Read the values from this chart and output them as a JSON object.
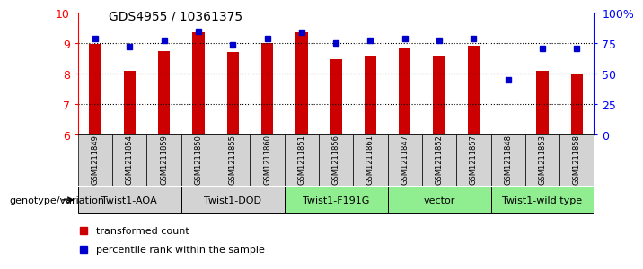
{
  "title": "GDS4955 / 10361375",
  "samples": [
    "GSM1211849",
    "GSM1211854",
    "GSM1211859",
    "GSM1211850",
    "GSM1211855",
    "GSM1211860",
    "GSM1211851",
    "GSM1211856",
    "GSM1211861",
    "GSM1211847",
    "GSM1211852",
    "GSM1211857",
    "GSM1211848",
    "GSM1211853",
    "GSM1211858"
  ],
  "bar_values": [
    8.98,
    8.1,
    8.74,
    9.35,
    8.72,
    9.01,
    9.35,
    8.47,
    8.59,
    8.82,
    8.58,
    8.91,
    6.02,
    8.1,
    8.02
  ],
  "percentile_values": [
    79,
    72,
    77,
    85,
    74,
    79,
    84,
    75,
    77,
    79,
    77,
    79,
    45,
    71,
    71
  ],
  "groups": [
    {
      "label": "Twist1-AQA",
      "indices": [
        0,
        1,
        2
      ],
      "color": "#d3d3d3"
    },
    {
      "label": "Twist1-DQD",
      "indices": [
        3,
        4,
        5
      ],
      "color": "#d3d3d3"
    },
    {
      "label": "Twist1-F191G",
      "indices": [
        6,
        7,
        8
      ],
      "color": "#90ee90"
    },
    {
      "label": "vector",
      "indices": [
        9,
        10,
        11
      ],
      "color": "#90ee90"
    },
    {
      "label": "Twist1-wild type",
      "indices": [
        12,
        13,
        14
      ],
      "color": "#90ee90"
    }
  ],
  "ylim_left": [
    6,
    10
  ],
  "ylim_right": [
    0,
    100
  ],
  "yticks_left": [
    6,
    7,
    8,
    9,
    10
  ],
  "yticks_right": [
    0,
    25,
    50,
    75,
    100
  ],
  "yticklabels_right": [
    "0",
    "25",
    "50",
    "75",
    "100%"
  ],
  "bar_color": "#cc0000",
  "dot_color": "#0000cc",
  "legend_bar_label": "transformed count",
  "legend_dot_label": "percentile rank within the sample",
  "xlabel_group": "genotype/variation",
  "sample_bg_color": "#d3d3d3",
  "bar_width": 0.35
}
